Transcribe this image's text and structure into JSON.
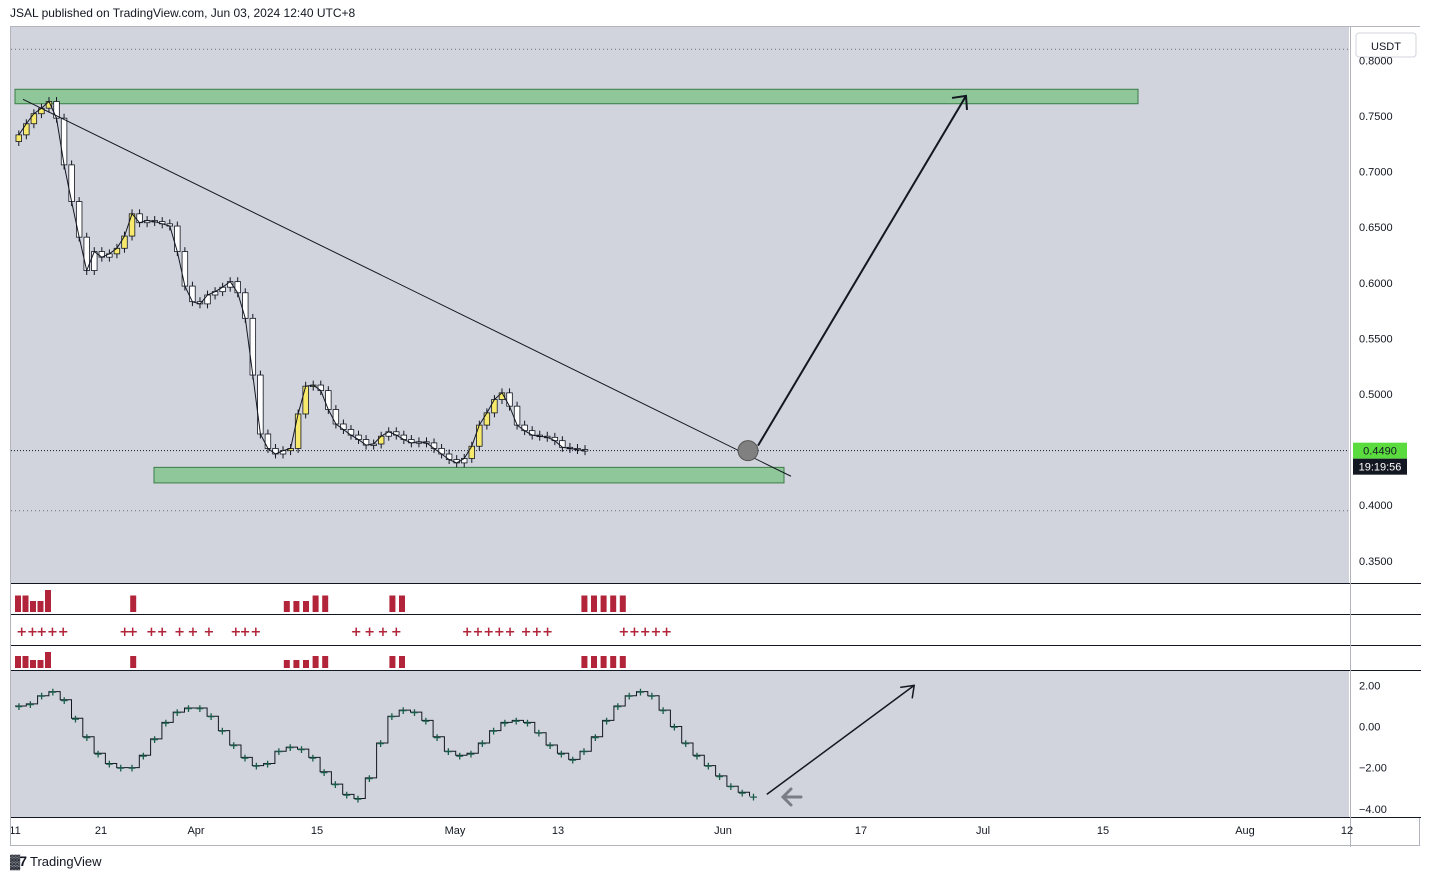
{
  "header": {
    "publish_text": "JSAL published on TradingView.com, Jun 03, 2024 12:40 UTC+8"
  },
  "footer": {
    "brand": "TradingView",
    "logo_icon": "tradingview-logo-icon"
  },
  "chart_data": [
    {
      "type": "candlestick",
      "currency_label": "USDT",
      "y_ticks": [
        "0.8000",
        "0.7500",
        "0.7000",
        "0.6500",
        "0.6000",
        "0.5500",
        "0.5000",
        "0.4500",
        "0.4000",
        "0.3500"
      ],
      "y_tick_values": [
        0.8,
        0.75,
        0.7,
        0.65,
        0.6,
        0.55,
        0.5,
        0.45,
        0.4,
        0.35
      ],
      "ylim": [
        0.33,
        0.83
      ],
      "x_ticks": [
        "11",
        "21",
        "Apr",
        "15",
        "May",
        "13",
        "Jun",
        "17",
        "Jul",
        "15",
        "Aug",
        "12"
      ],
      "last_price": "0.4490",
      "countdown": "19:19:56",
      "dotted_levels": [
        0.81,
        0.395
      ],
      "resistance_zone": [
        0.761,
        0.774
      ],
      "support_zone": [
        0.42,
        0.434
      ],
      "trendline": {
        "from": [
          0,
          0.765
        ],
        "to": [
          170,
          0.426
        ]
      },
      "projection_arrow": {
        "from": [
          163,
          0.449
        ],
        "to": [
          205,
          0.768
        ]
      },
      "breakout_marker_price": 0.449,
      "colors": {
        "bull_highlight": "#f6e96b",
        "bear": "#ffffff",
        "zone": "#8fc79a",
        "last_price_bg": "#5bdc3e"
      },
      "closes": [
        0.733,
        0.743,
        0.752,
        0.757,
        0.763,
        0.748,
        0.706,
        0.673,
        0.641,
        0.611,
        0.628,
        0.623,
        0.626,
        0.631,
        0.642,
        0.662,
        0.654,
        0.656,
        0.655,
        0.653,
        0.651,
        0.628,
        0.597,
        0.583,
        0.581,
        0.589,
        0.592,
        0.596,
        0.601,
        0.591,
        0.568,
        0.517,
        0.464,
        0.451,
        0.446,
        0.449,
        0.451,
        0.482,
        0.507,
        0.508,
        0.503,
        0.486,
        0.473,
        0.468,
        0.463,
        0.459,
        0.454,
        0.455,
        0.462,
        0.466,
        0.463,
        0.459,
        0.456,
        0.457,
        0.456,
        0.451,
        0.446,
        0.441,
        0.438,
        0.442,
        0.453,
        0.472,
        0.483,
        0.495,
        0.501,
        0.489,
        0.472,
        0.467,
        0.463,
        0.462,
        0.461,
        0.458,
        0.452,
        0.451,
        0.45,
        0.449
      ],
      "bull_highlight_indices": [
        0,
        1,
        2,
        3,
        4,
        13,
        14,
        15,
        36,
        37,
        38,
        39,
        48,
        60,
        61,
        62,
        63,
        64
      ]
    },
    {
      "type": "bar",
      "panel": "indicator-1",
      "color": "#b2243a",
      "ylim": [
        0,
        4
      ],
      "values": [
        3,
        3,
        2,
        2,
        4,
        0,
        0,
        0,
        0,
        0,
        0,
        0,
        3,
        0,
        0,
        0,
        0,
        0,
        0,
        0,
        0,
        0,
        0,
        0,
        0,
        0,
        0,
        0,
        2,
        2,
        2,
        3,
        3,
        0,
        0,
        0,
        0,
        0,
        0,
        3,
        3,
        0,
        0,
        0,
        0,
        0,
        0,
        0,
        0,
        0,
        0,
        0,
        0,
        0,
        0,
        0,
        0,
        0,
        0,
        3,
        3,
        3,
        3,
        3,
        0,
        0,
        0,
        0,
        0,
        0,
        0,
        0,
        0
      ]
    },
    {
      "type": "scatter",
      "panel": "indicator-2-markers",
      "color": "#b2243a",
      "positions_pct": [
        0.5,
        1.3,
        2.0,
        2.8,
        3.6,
        8.2,
        8.8,
        10.2,
        11.0,
        12.3,
        13.3,
        14.5,
        16.5,
        17.2,
        18.0,
        25.5,
        26.5,
        27.5,
        28.5,
        33.8,
        34.6,
        35.4,
        36.2,
        37.0,
        38.2,
        39.0,
        39.8,
        45.5,
        46.3,
        47.1,
        47.9,
        48.7
      ]
    },
    {
      "type": "bar",
      "panel": "indicator-3",
      "color": "#b2243a",
      "ylim": [
        0,
        4
      ],
      "values": [
        3,
        3,
        2,
        2,
        4,
        0,
        0,
        0,
        0,
        0,
        0,
        0,
        3,
        0,
        0,
        0,
        0,
        0,
        0,
        0,
        0,
        0,
        0,
        0,
        0,
        0,
        0,
        0,
        2,
        2,
        2,
        3,
        3,
        0,
        0,
        0,
        0,
        0,
        0,
        3,
        3,
        0,
        0,
        0,
        0,
        0,
        0,
        0,
        0,
        0,
        0,
        0,
        0,
        0,
        0,
        0,
        0,
        0,
        0,
        3,
        3,
        3,
        3,
        3,
        0,
        0,
        0,
        0,
        0,
        0,
        0,
        0,
        0
      ]
    },
    {
      "type": "line",
      "panel": "oscillator",
      "y_ticks": [
        "2.00",
        "0.00",
        "−2.00",
        "−4.00"
      ],
      "y_tick_values": [
        2,
        0,
        -2,
        -4
      ],
      "ylim": [
        -4.4,
        2.7
      ],
      "marker_color": "#1a5c4a",
      "values": [
        1.0,
        1.1,
        1.5,
        1.7,
        1.3,
        0.4,
        -0.5,
        -1.3,
        -1.8,
        -2.0,
        -2.0,
        -1.4,
        -0.6,
        0.2,
        0.7,
        0.9,
        0.9,
        0.5,
        -0.2,
        -0.9,
        -1.5,
        -1.9,
        -1.8,
        -1.2,
        -1.0,
        -1.1,
        -1.5,
        -2.2,
        -2.8,
        -3.3,
        -3.5,
        -2.5,
        -0.8,
        0.5,
        0.8,
        0.7,
        0.3,
        -0.5,
        -1.2,
        -1.4,
        -1.3,
        -0.8,
        -0.2,
        0.2,
        0.3,
        0.2,
        -0.3,
        -0.9,
        -1.3,
        -1.6,
        -1.2,
        -0.5,
        0.3,
        1.0,
        1.5,
        1.7,
        1.5,
        0.8,
        0.0,
        -0.8,
        -1.4,
        -1.9,
        -2.4,
        -2.9,
        -3.2,
        -3.4
      ],
      "projection_arrow": {
        "from": [
          66,
          -3.3
        ],
        "to": [
          84,
          2.0
        ]
      },
      "back_arrow_icon": "arrow-left-icon"
    }
  ]
}
